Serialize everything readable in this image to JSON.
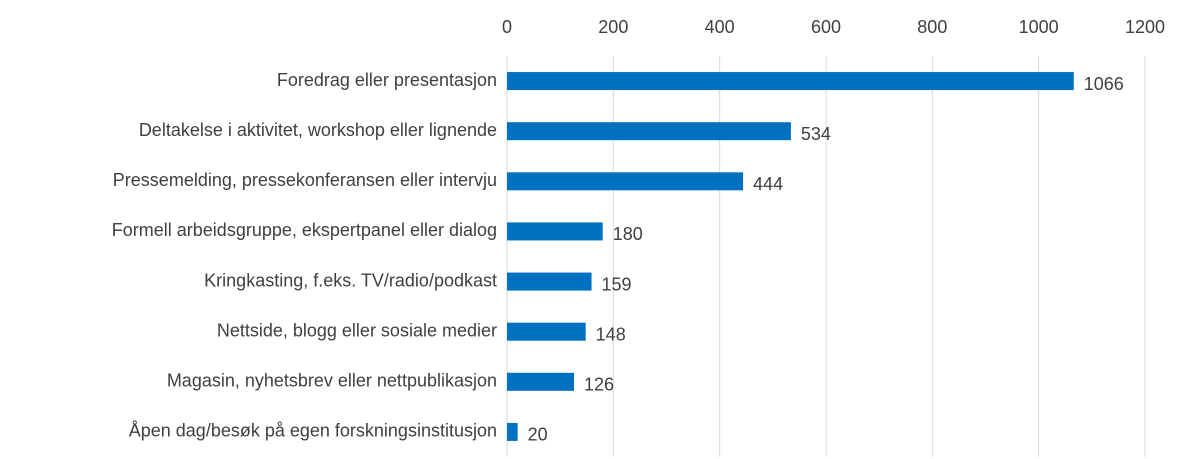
{
  "chart_data": {
    "type": "bar",
    "categories": [
      "Foredrag eller presentasjon",
      "Deltakelse i aktivitet, workshop eller lignende",
      "Pressemelding, pressekonferansen eller intervju",
      "Formell arbeidsgruppe, ekspertpanel eller dialog",
      "Kringkasting, f.eks. TV/radio/podkast",
      "Nettside, blogg eller sosiale medier",
      "Magasin, nyhetsbrev eller nettpublikasjon",
      "Åpen dag/besøk på egen forskningsinstitusjon"
    ],
    "values": [
      1066,
      534,
      444,
      180,
      159,
      148,
      126,
      20
    ],
    "color": "#0070c0",
    "xlim": [
      0,
      1200
    ],
    "xticks": [
      0,
      200,
      400,
      600,
      800,
      1000,
      1200
    ],
    "grid": true
  }
}
